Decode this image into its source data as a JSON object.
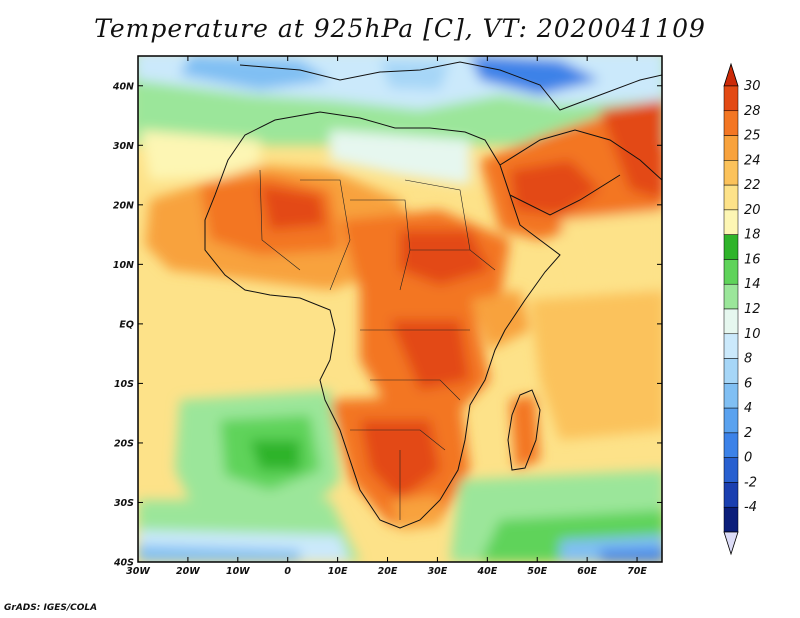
{
  "title": "Temperature at 925hPa [C], VT: 2020041109",
  "credit": "GrADS: IGES/COLA",
  "map": {
    "lon_range": [
      -30,
      75
    ],
    "lat_range": [
      -40,
      45
    ],
    "lon_ticks": [
      {
        "value": -30,
        "label": "30W"
      },
      {
        "value": -20,
        "label": "20W"
      },
      {
        "value": -10,
        "label": "10W"
      },
      {
        "value": 0,
        "label": "0"
      },
      {
        "value": 10,
        "label": "10E"
      },
      {
        "value": 20,
        "label": "20E"
      },
      {
        "value": 30,
        "label": "30E"
      },
      {
        "value": 40,
        "label": "40E"
      },
      {
        "value": 50,
        "label": "50E"
      },
      {
        "value": 60,
        "label": "60E"
      },
      {
        "value": 70,
        "label": "70E"
      }
    ],
    "lat_ticks": [
      {
        "value": 40,
        "label": "40N"
      },
      {
        "value": 30,
        "label": "30N"
      },
      {
        "value": 20,
        "label": "20N"
      },
      {
        "value": 10,
        "label": "10N"
      },
      {
        "value": 0,
        "label": "EQ"
      },
      {
        "value": -10,
        "label": "10S"
      },
      {
        "value": -20,
        "label": "20S"
      },
      {
        "value": -30,
        "label": "30S"
      },
      {
        "value": -40,
        "label": "40S"
      }
    ]
  },
  "colorbar": {
    "levels": [
      {
        "label": "-4",
        "color": "#0b1e7a"
      },
      {
        "label": "-2",
        "color": "#1a3fb0"
      },
      {
        "label": "0",
        "color": "#2860d0"
      },
      {
        "label": "2",
        "color": "#3c82e8"
      },
      {
        "label": "4",
        "color": "#5aa2ef"
      },
      {
        "label": "6",
        "color": "#80bff3"
      },
      {
        "label": "8",
        "color": "#a6d6f7"
      },
      {
        "label": "10",
        "color": "#cbe9fb"
      },
      {
        "label": "12",
        "color": "#e6f7ef"
      },
      {
        "label": "14",
        "color": "#9be69a"
      },
      {
        "label": "16",
        "color": "#5fd35a"
      },
      {
        "label": "18",
        "color": "#2fb42a"
      },
      {
        "label": "20",
        "color": "#fdf6b4"
      },
      {
        "label": "22",
        "color": "#fde289"
      },
      {
        "label": "24",
        "color": "#fbc25b"
      },
      {
        "label": "25",
        "color": "#f8a23c"
      },
      {
        "label": "28",
        "color": "#f37623"
      },
      {
        "label": "30",
        "color": "#e34a14"
      }
    ],
    "low_color": "#dcdcf7",
    "high_color": "#cc2a08"
  }
}
